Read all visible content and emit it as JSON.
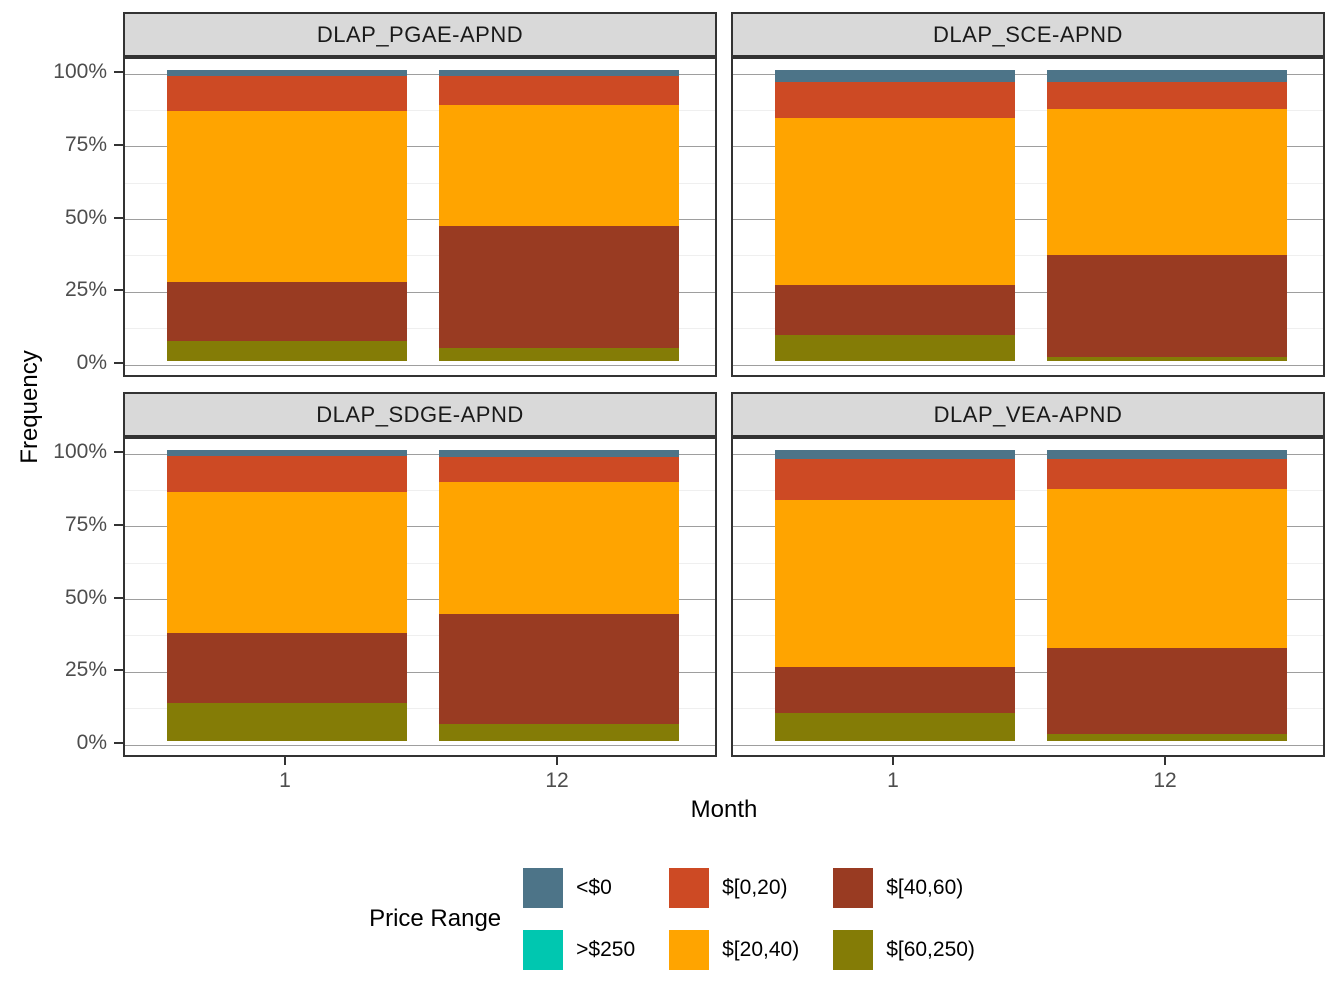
{
  "chart_data": {
    "type": "bar",
    "variant": "stacked-100percent",
    "faceted": true,
    "grid": true,
    "xlabel": "Month",
    "ylabel": "Frequency",
    "x_categories": [
      "1",
      "12"
    ],
    "ylim": [
      0,
      100
    ],
    "y_ticks": [
      {
        "label": "100%",
        "value": 100
      },
      {
        "label": "75%",
        "value": 75
      },
      {
        "label": "50%",
        "value": 50
      },
      {
        "label": "25%",
        "value": 25
      },
      {
        "label": "0%",
        "value": 0
      }
    ],
    "y_minor_gridlines": [
      12.5,
      37.5,
      62.5,
      87.5
    ],
    "legend_title": "Price Range",
    "legend_position": "bottom",
    "legend_entries": [
      {
        "label": "<$0",
        "color": "#4d7488"
      },
      {
        "label": ">$250",
        "color": "#00c7b0"
      },
      {
        "label": "$[0,20)",
        "color": "#cd4a24"
      },
      {
        "label": "$[20,40)",
        "color": "#ffa400"
      },
      {
        "label": "$[40,60)",
        "color": "#993b22"
      },
      {
        "label": "$[60,250)",
        "color": "#847c06"
      }
    ],
    "stack_order_top_to_bottom": [
      "<$0",
      ">$250",
      "$[0,20)",
      "$[20,40)",
      "$[40,60)",
      "$[60,250)"
    ],
    "facets": [
      {
        "title": "DLAP_PGAE-APND",
        "bars": [
          {
            "month": "1",
            "segments": {
              "<$0": 2,
              ">$250": 0,
              "$[0,20)": 12,
              "$[20,40)": 59,
              "$[40,60)": 20,
              "$[60,250)": 7
            }
          },
          {
            "month": "12",
            "segments": {
              "<$0": 2,
              ">$250": 0,
              "$[0,20)": 10,
              "$[20,40)": 41.5,
              "$[40,60)": 42,
              "$[60,250)": 4.5
            }
          }
        ]
      },
      {
        "title": "DLAP_SCE-APND",
        "bars": [
          {
            "month": "1",
            "segments": {
              "<$0": 4,
              ">$250": 0,
              "$[0,20)": 12.5,
              "$[20,40)": 57.5,
              "$[40,60)": 17,
              "$[60,250)": 9
            }
          },
          {
            "month": "12",
            "segments": {
              "<$0": 4,
              ">$250": 0,
              "$[0,20)": 9.5,
              "$[20,40)": 50,
              "$[40,60)": 35,
              "$[60,250)": 1.5
            }
          }
        ]
      },
      {
        "title": "DLAP_SDGE-APND",
        "bars": [
          {
            "month": "1",
            "segments": {
              "<$0": 2,
              ">$250": 0,
              "$[0,20)": 12.5,
              "$[20,40)": 48.5,
              "$[40,60)": 24,
              "$[60,250)": 13
            }
          },
          {
            "month": "12",
            "segments": {
              "<$0": 2.5,
              ">$250": 0,
              "$[0,20)": 8.5,
              "$[20,40)": 45.5,
              "$[40,60)": 37.5,
              "$[60,250)": 6
            }
          }
        ]
      },
      {
        "title": "DLAP_VEA-APND",
        "bars": [
          {
            "month": "1",
            "segments": {
              "<$0": 3,
              ">$250": 0,
              "$[0,20)": 14,
              "$[20,40)": 57.5,
              "$[40,60)": 16,
              "$[60,250)": 9.5
            }
          },
          {
            "month": "12",
            "segments": {
              "<$0": 3,
              ">$250": 0,
              "$[0,20)": 10.5,
              "$[20,40)": 54.5,
              "$[40,60)": 29.5,
              "$[60,250)": 2.5
            }
          }
        ]
      }
    ]
  }
}
